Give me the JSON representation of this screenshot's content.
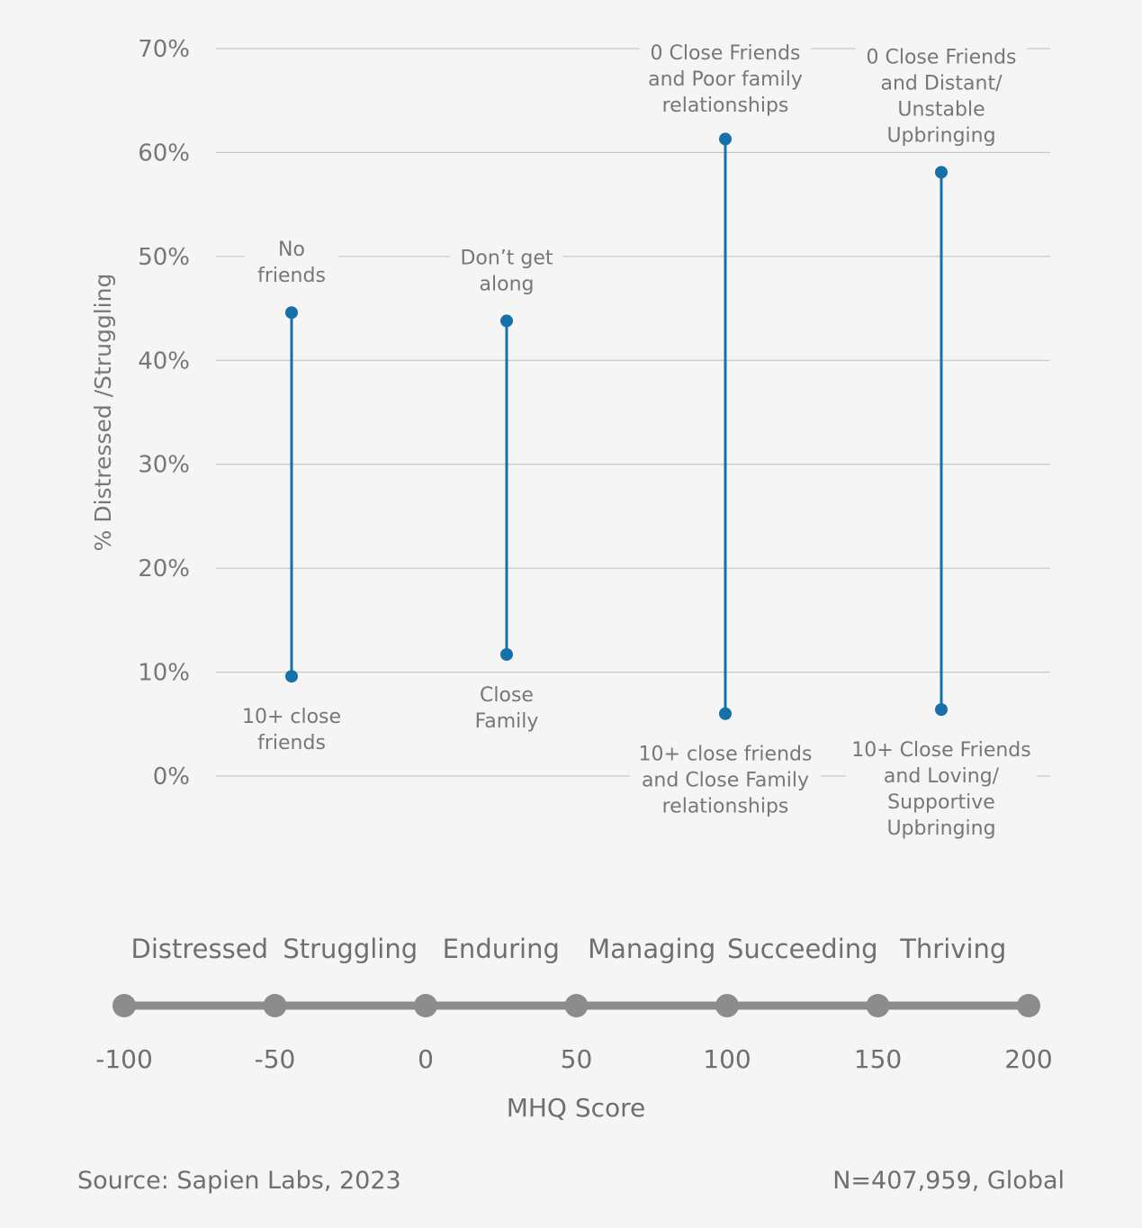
{
  "chart_data": {
    "type": "range",
    "ylabel": "% Distressed /Struggling",
    "yticks": [
      "70%",
      "60%",
      "50%",
      "40%",
      "30%",
      "20%",
      "10%",
      "0%"
    ],
    "ylim": [
      0,
      70
    ],
    "y_unit": "%",
    "grid": true,
    "series_color": "#1670a9",
    "series": [
      {
        "high_label": [
          "No",
          "friends"
        ],
        "high": 44.6,
        "low_label": [
          "10+ close",
          "friends"
        ],
        "low": 9.6
      },
      {
        "high_label": [
          "Don’t get",
          "along"
        ],
        "high": 43.8,
        "low_label": [
          "Close",
          "Family"
        ],
        "low": 11.7
      },
      {
        "high_label": [
          "0 Close Friends",
          "and Poor family",
          "relationships"
        ],
        "high": 61.3,
        "low_label": [
          "10+ close friends",
          "and Close Family",
          "relationships"
        ],
        "low": 6.0
      },
      {
        "high_label": [
          "0 Close Friends",
          "and Distant/",
          "Unstable",
          "Upbringing"
        ],
        "high": 58.1,
        "low_label": [
          "10+ Close Friends",
          "and Loving/",
          "Supportive",
          "Upbringing"
        ],
        "low": 6.4
      }
    ]
  },
  "mhq_scale": {
    "categories": [
      "Distressed",
      "Struggling",
      "Enduring",
      "Managing",
      "Succeeding",
      "Thriving"
    ],
    "ticks": [
      "-100",
      "-50",
      "0",
      "50",
      "100",
      "150",
      "200"
    ],
    "title": "MHQ Score",
    "line_color": "#8c8c8c"
  },
  "footer": {
    "source": "Source: Sapien Labs, 2023",
    "sample": "N=407,959, Global"
  }
}
